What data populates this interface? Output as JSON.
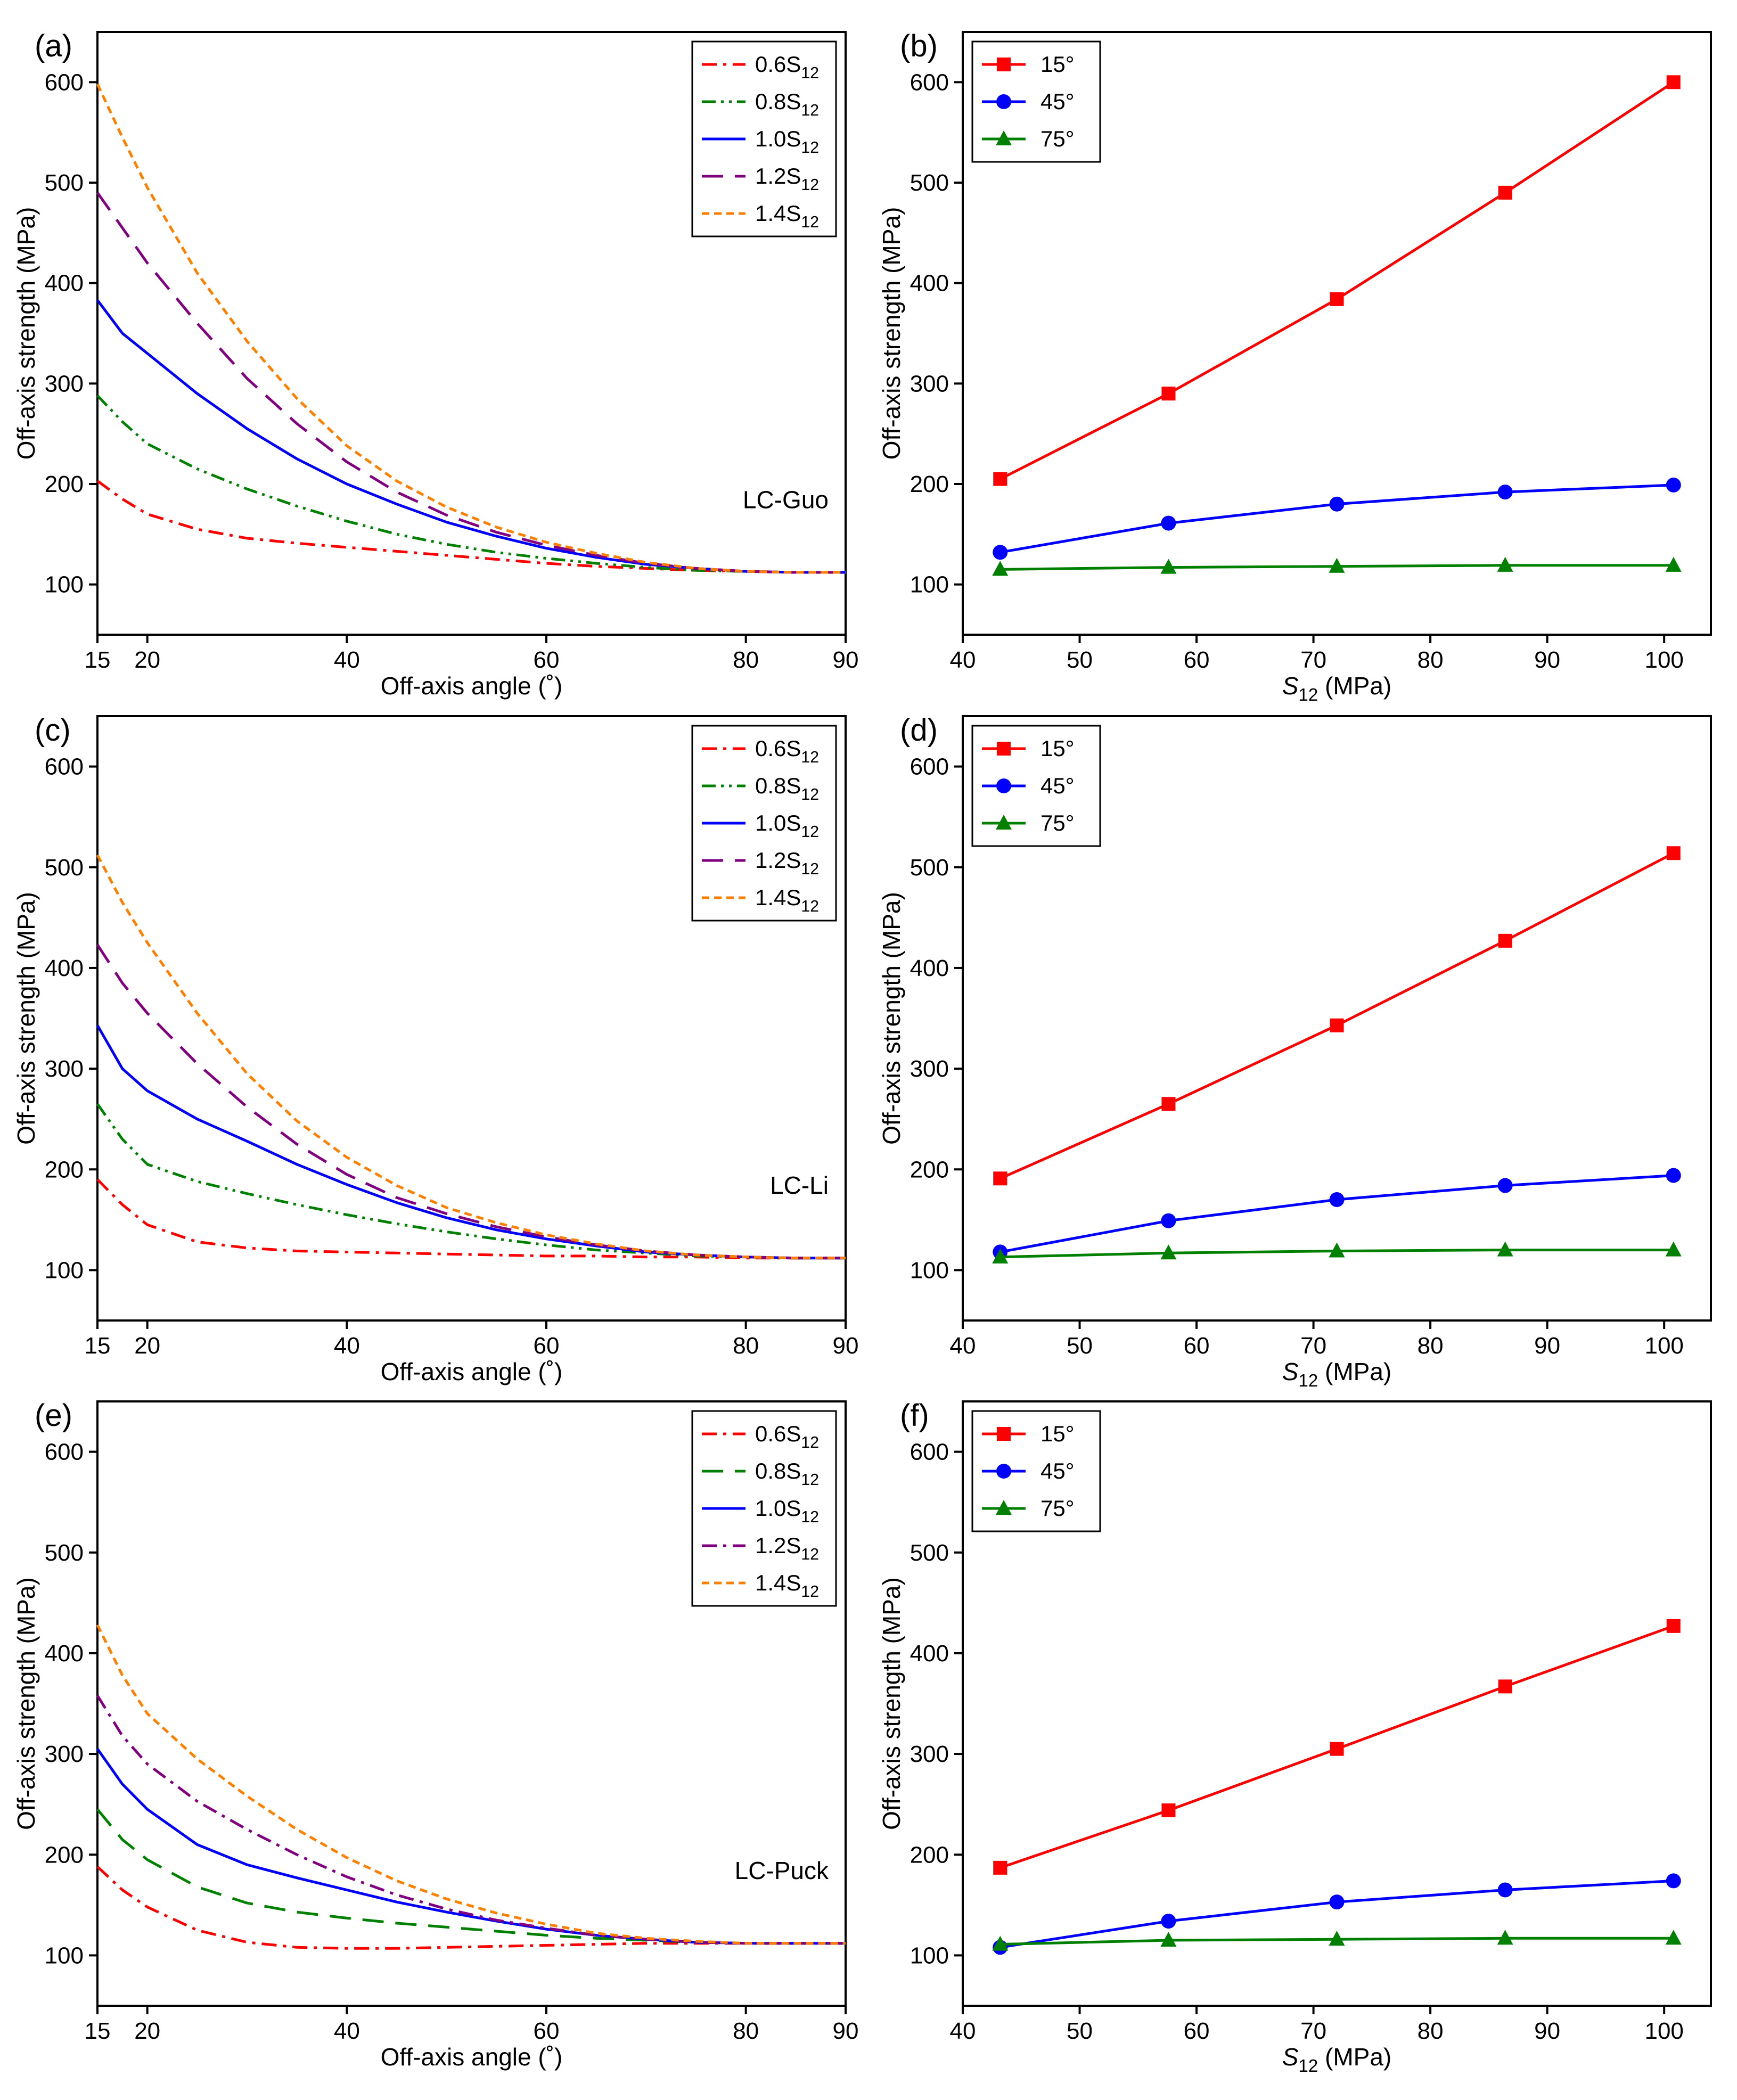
{
  "colors": {
    "red": "#ff0000",
    "green": "#008000",
    "blue": "#0000ff",
    "purple": "#800080",
    "orange": "#ff8000"
  },
  "chart_data": [
    {
      "id": "a",
      "panel_label": "(a)",
      "type": "line",
      "annotation": "LC-Guo",
      "xlabel": "Off-axis angle (˚)",
      "ylabel": "Off-axis strength (MPa)",
      "xlim": [
        15,
        90
      ],
      "ylim": [
        50,
        650
      ],
      "xticks": [
        15,
        20,
        40,
        60,
        80,
        90
      ],
      "yticks": [
        100,
        200,
        300,
        400,
        500,
        600
      ],
      "legend_position": "top-right",
      "x": [
        15,
        17.5,
        20,
        25,
        30,
        35,
        40,
        45,
        50,
        55,
        60,
        65,
        70,
        75,
        80,
        85,
        90
      ],
      "series": [
        {
          "name": "0.6S12",
          "base": "0.6S",
          "sub": "12",
          "color": "red",
          "dash": "dashdot",
          "values": [
            203,
            185,
            170,
            155,
            146,
            141,
            137,
            133,
            129,
            125,
            121,
            118,
            116,
            114,
            113,
            112,
            112
          ]
        },
        {
          "name": "0.8S12",
          "base": "0.8S",
          "sub": "12",
          "color": "green",
          "dash": "dashdotdot",
          "values": [
            288,
            262,
            240,
            215,
            195,
            178,
            163,
            150,
            140,
            132,
            126,
            121,
            117,
            114,
            113,
            112,
            112
          ]
        },
        {
          "name": "1.0S12",
          "base": "1.0S",
          "sub": "12",
          "color": "blue",
          "dash": "solid",
          "values": [
            383,
            350,
            330,
            290,
            255,
            225,
            200,
            180,
            162,
            148,
            136,
            127,
            120,
            116,
            113,
            112,
            112
          ]
        },
        {
          "name": "1.2S12",
          "base": "1.2S",
          "sub": "12",
          "color": "purple",
          "dash": "longdash",
          "values": [
            490,
            455,
            420,
            360,
            305,
            260,
            222,
            192,
            169,
            152,
            139,
            129,
            121,
            116,
            113,
            112,
            112
          ]
        },
        {
          "name": "1.4S12",
          "base": "1.4S",
          "sub": "12",
          "color": "orange",
          "dash": "shortdash",
          "values": [
            598,
            545,
            495,
            410,
            342,
            285,
            238,
            203,
            177,
            157,
            142,
            131,
            122,
            116,
            113,
            112,
            112
          ]
        }
      ]
    },
    {
      "id": "b",
      "panel_label": "(b)",
      "type": "line",
      "xlabel": "S12 (MPa)",
      "xlabel_base": "S",
      "xlabel_sub": "12",
      "xlabel_rest": " (MPa)",
      "ylabel": "Off-axis strength (MPa)",
      "xlim": [
        40,
        104
      ],
      "ylim": [
        50,
        650
      ],
      "xticks": [
        40,
        50,
        60,
        70,
        80,
        90,
        100
      ],
      "yticks": [
        100,
        200,
        300,
        400,
        500,
        600
      ],
      "legend_position": "top-left",
      "x": [
        43.2,
        57.6,
        72,
        86.4,
        100.8
      ],
      "series": [
        {
          "name": "15°",
          "color": "red",
          "marker": "square",
          "values": [
            205,
            290,
            384,
            490,
            600
          ]
        },
        {
          "name": "45°",
          "color": "blue",
          "marker": "circle",
          "values": [
            132,
            161,
            180,
            192,
            199
          ]
        },
        {
          "name": "75°",
          "color": "green",
          "marker": "triangle",
          "values": [
            115,
            117,
            118,
            119,
            119
          ]
        }
      ]
    },
    {
      "id": "c",
      "panel_label": "(c)",
      "type": "line",
      "annotation": "LC-Li",
      "xlabel": "Off-axis angle (˚)",
      "ylabel": "Off-axis strength (MPa)",
      "xlim": [
        15,
        90
      ],
      "ylim": [
        50,
        650
      ],
      "xticks": [
        15,
        20,
        40,
        60,
        80,
        90
      ],
      "yticks": [
        100,
        200,
        300,
        400,
        500,
        600
      ],
      "legend_position": "top-right",
      "x": [
        15,
        17.5,
        20,
        25,
        30,
        35,
        40,
        45,
        50,
        55,
        60,
        65,
        70,
        75,
        80,
        85,
        90
      ],
      "series": [
        {
          "name": "0.6S12",
          "base": "0.6S",
          "sub": "12",
          "color": "red",
          "dash": "dashdot",
          "values": [
            190,
            165,
            145,
            128,
            122,
            119,
            118,
            117,
            116,
            115,
            114,
            114,
            113,
            113,
            112,
            112,
            112
          ]
        },
        {
          "name": "0.8S12",
          "base": "0.8S",
          "sub": "12",
          "color": "green",
          "dash": "dashdotdot",
          "values": [
            265,
            230,
            205,
            188,
            176,
            165,
            155,
            146,
            138,
            131,
            125,
            120,
            117,
            114,
            113,
            112,
            112
          ]
        },
        {
          "name": "1.0S12",
          "base": "1.0S",
          "sub": "12",
          "color": "blue",
          "dash": "solid",
          "values": [
            343,
            300,
            278,
            250,
            228,
            205,
            185,
            167,
            152,
            140,
            131,
            124,
            118,
            115,
            113,
            112,
            112
          ]
        },
        {
          "name": "1.2S12",
          "base": "1.2S",
          "sub": "12",
          "color": "purple",
          "dash": "longdash",
          "values": [
            423,
            385,
            355,
            305,
            262,
            225,
            195,
            172,
            156,
            143,
            133,
            125,
            119,
            115,
            113,
            112,
            112
          ]
        },
        {
          "name": "1.4S12",
          "base": "1.4S",
          "sub": "12",
          "color": "orange",
          "dash": "shortdash",
          "values": [
            512,
            465,
            425,
            355,
            295,
            248,
            212,
            184,
            162,
            147,
            135,
            126,
            119,
            115,
            113,
            112,
            112
          ]
        }
      ]
    },
    {
      "id": "d",
      "panel_label": "(d)",
      "type": "line",
      "xlabel": "S12 (MPa)",
      "xlabel_base": "S",
      "xlabel_sub": "12",
      "xlabel_rest": " (MPa)",
      "ylabel": "Off-axis strength (MPa)",
      "xlim": [
        40,
        104
      ],
      "ylim": [
        50,
        650
      ],
      "xticks": [
        40,
        50,
        60,
        70,
        80,
        90,
        100
      ],
      "yticks": [
        100,
        200,
        300,
        400,
        500,
        600
      ],
      "legend_position": "top-left",
      "x": [
        43.2,
        57.6,
        72,
        86.4,
        100.8
      ],
      "series": [
        {
          "name": "15°",
          "color": "red",
          "marker": "square",
          "values": [
            191,
            265,
            343,
            427,
            514
          ]
        },
        {
          "name": "45°",
          "color": "blue",
          "marker": "circle",
          "values": [
            118,
            149,
            170,
            184,
            194
          ]
        },
        {
          "name": "75°",
          "color": "green",
          "marker": "triangle",
          "values": [
            113,
            117,
            119,
            120,
            120
          ]
        }
      ]
    },
    {
      "id": "e",
      "panel_label": "(e)",
      "type": "line",
      "annotation": "LC-Puck",
      "xlabel": "Off-axis angle (˚)",
      "ylabel": "Off-axis strength (MPa)",
      "xlim": [
        15,
        90
      ],
      "ylim": [
        50,
        650
      ],
      "xticks": [
        15,
        20,
        40,
        60,
        80,
        90
      ],
      "yticks": [
        100,
        200,
        300,
        400,
        500,
        600
      ],
      "legend_position": "top-right",
      "x": [
        15,
        17.5,
        20,
        25,
        30,
        35,
        40,
        45,
        50,
        55,
        60,
        65,
        70,
        75,
        80,
        85,
        90
      ],
      "series": [
        {
          "name": "0.6S12",
          "base": "0.6S",
          "sub": "12",
          "color": "red",
          "dash": "dashdot",
          "values": [
            188,
            165,
            148,
            125,
            113,
            108,
            107,
            107,
            108,
            109,
            110,
            111,
            112,
            112,
            112,
            112,
            112
          ]
        },
        {
          "name": "0.8S12",
          "base": "0.8S",
          "sub": "12",
          "color": "green",
          "dash": "longdash",
          "values": [
            245,
            215,
            195,
            168,
            152,
            143,
            137,
            132,
            128,
            124,
            120,
            117,
            115,
            113,
            112,
            112,
            112
          ]
        },
        {
          "name": "1.0S12",
          "base": "1.0S",
          "sub": "12",
          "color": "blue",
          "dash": "solid",
          "values": [
            305,
            270,
            245,
            210,
            190,
            177,
            165,
            153,
            143,
            134,
            126,
            120,
            116,
            113,
            112,
            112,
            112
          ]
        },
        {
          "name": "1.2S12",
          "base": "1.2S",
          "sub": "12",
          "color": "purple",
          "dash": "dashdot",
          "values": [
            358,
            318,
            290,
            253,
            225,
            200,
            178,
            160,
            146,
            135,
            127,
            120,
            116,
            113,
            112,
            112,
            112
          ]
        },
        {
          "name": "1.4S12",
          "base": "1.4S",
          "sub": "12",
          "color": "orange",
          "dash": "shortdash",
          "values": [
            428,
            378,
            340,
            295,
            258,
            225,
            197,
            174,
            156,
            142,
            131,
            122,
            117,
            114,
            112,
            112,
            112
          ]
        }
      ]
    },
    {
      "id": "f",
      "panel_label": "(f)",
      "type": "line",
      "xlabel": "S12 (MPa)",
      "xlabel_base": "S",
      "xlabel_sub": "12",
      "xlabel_rest": " (MPa)",
      "ylabel": "Off-axis strength (MPa)",
      "xlim": [
        40,
        104
      ],
      "ylim": [
        50,
        650
      ],
      "xticks": [
        40,
        50,
        60,
        70,
        80,
        90,
        100
      ],
      "yticks": [
        100,
        200,
        300,
        400,
        500,
        600
      ],
      "legend_position": "top-left",
      "x": [
        43.2,
        57.6,
        72,
        86.4,
        100.8
      ],
      "series": [
        {
          "name": "15°",
          "color": "red",
          "marker": "square",
          "values": [
            187,
            244,
            305,
            367,
            427
          ]
        },
        {
          "name": "45°",
          "color": "blue",
          "marker": "circle",
          "values": [
            108,
            134,
            153,
            165,
            174
          ]
        },
        {
          "name": "75°",
          "color": "green",
          "marker": "triangle",
          "values": [
            111,
            115,
            116,
            117,
            117
          ]
        }
      ]
    }
  ]
}
